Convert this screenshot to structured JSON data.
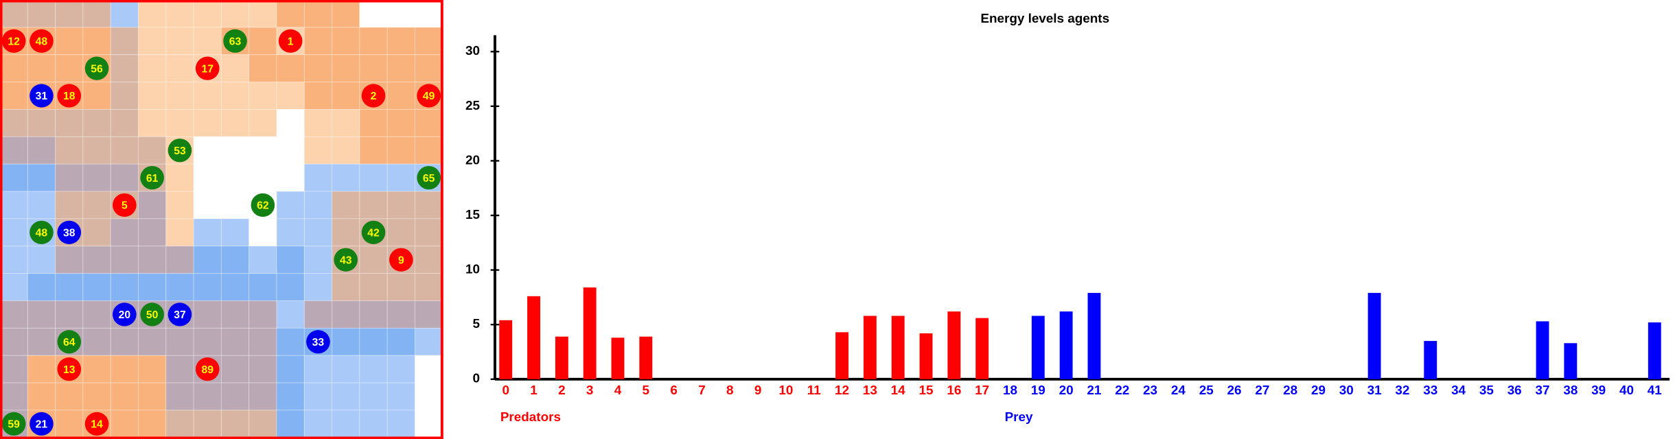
{
  "chart_data": {
    "type": "bar",
    "title": "Energy levels agents",
    "categories": [
      "0",
      "1",
      "2",
      "3",
      "4",
      "5",
      "6",
      "7",
      "8",
      "9",
      "10",
      "11",
      "12",
      "13",
      "14",
      "15",
      "16",
      "17",
      "18",
      "19",
      "20",
      "21",
      "22",
      "23",
      "24",
      "25",
      "26",
      "27",
      "28",
      "29",
      "30",
      "31",
      "32",
      "33",
      "34",
      "35",
      "36",
      "37",
      "38",
      "39",
      "40",
      "41"
    ],
    "series": [
      {
        "name": "Predators",
        "color": "#ff0000",
        "values": [
          5.4,
          7.6,
          3.9,
          8.4,
          3.8,
          3.9,
          0,
          0,
          0,
          0,
          0,
          0,
          4.3,
          5.8,
          5.8,
          4.2,
          6.2,
          5.6,
          null,
          null,
          null,
          null,
          null,
          null,
          null,
          null,
          null,
          null,
          null,
          null,
          null,
          null,
          null,
          null,
          null,
          null,
          null,
          null,
          null,
          null,
          null,
          null
        ]
      },
      {
        "name": "Prey",
        "color": "#0000ff",
        "values": [
          null,
          null,
          null,
          null,
          null,
          null,
          null,
          null,
          null,
          null,
          null,
          null,
          null,
          null,
          null,
          null,
          null,
          null,
          0,
          5.8,
          6.2,
          7.9,
          0,
          0,
          0,
          0,
          0,
          0,
          0,
          0,
          0,
          7.9,
          0,
          3.5,
          0,
          0,
          0,
          5.3,
          3.3,
          0,
          0,
          5.2
        ]
      }
    ],
    "ylim": [
      0,
      31.5
    ],
    "yticks": [
      0,
      5,
      10,
      15,
      20,
      25,
      30
    ]
  },
  "grid": {
    "agents": [
      {
        "label": "12",
        "color": "red",
        "col": 0,
        "row": 1
      },
      {
        "label": "48",
        "color": "red",
        "col": 1,
        "row": 1
      },
      {
        "label": "63",
        "color": "green",
        "col": 8,
        "row": 1
      },
      {
        "label": "1",
        "color": "red",
        "col": 10,
        "row": 1
      },
      {
        "label": "56",
        "color": "green",
        "col": 3,
        "row": 2
      },
      {
        "label": "17",
        "color": "red",
        "col": 7,
        "row": 2
      },
      {
        "label": "31",
        "color": "blue",
        "col": 1,
        "row": 3
      },
      {
        "label": "18",
        "color": "red",
        "col": 2,
        "row": 3
      },
      {
        "label": "2",
        "color": "red",
        "col": 13,
        "row": 3
      },
      {
        "label": "49",
        "color": "red",
        "col": 15,
        "row": 3
      },
      {
        "label": "53",
        "color": "green",
        "col": 6,
        "row": 5
      },
      {
        "label": "61",
        "color": "green",
        "col": 5,
        "row": 6
      },
      {
        "label": "65",
        "color": "green",
        "col": 15,
        "row": 6
      },
      {
        "label": "5",
        "color": "red",
        "col": 4,
        "row": 7
      },
      {
        "label": "62",
        "color": "green",
        "col": 9,
        "row": 7
      },
      {
        "label": "48",
        "color": "green",
        "col": 1,
        "row": 8
      },
      {
        "label": "38",
        "color": "blue",
        "col": 2,
        "row": 8
      },
      {
        "label": "42",
        "color": "green",
        "col": 13,
        "row": 8
      },
      {
        "label": "43",
        "color": "green",
        "col": 12,
        "row": 9
      },
      {
        "label": "9",
        "color": "red",
        "col": 14,
        "row": 9
      },
      {
        "label": "20",
        "color": "blue",
        "col": 4,
        "row": 11
      },
      {
        "label": "50",
        "color": "green",
        "col": 5,
        "row": 11
      },
      {
        "label": "37",
        "color": "blue",
        "col": 6,
        "row": 11
      },
      {
        "label": "64",
        "color": "green",
        "col": 2,
        "row": 12
      },
      {
        "label": "33",
        "color": "blue",
        "col": 11,
        "row": 12
      },
      {
        "label": "13",
        "color": "red",
        "col": 2,
        "row": 13
      },
      {
        "label": "89",
        "color": "red",
        "col": 7,
        "row": 13
      },
      {
        "label": "59",
        "color": "green",
        "col": 0,
        "row": 15
      },
      {
        "label": "21",
        "color": "blue",
        "col": 1,
        "row": 15
      },
      {
        "label": "14",
        "color": "red",
        "col": 3,
        "row": 15
      }
    ]
  }
}
